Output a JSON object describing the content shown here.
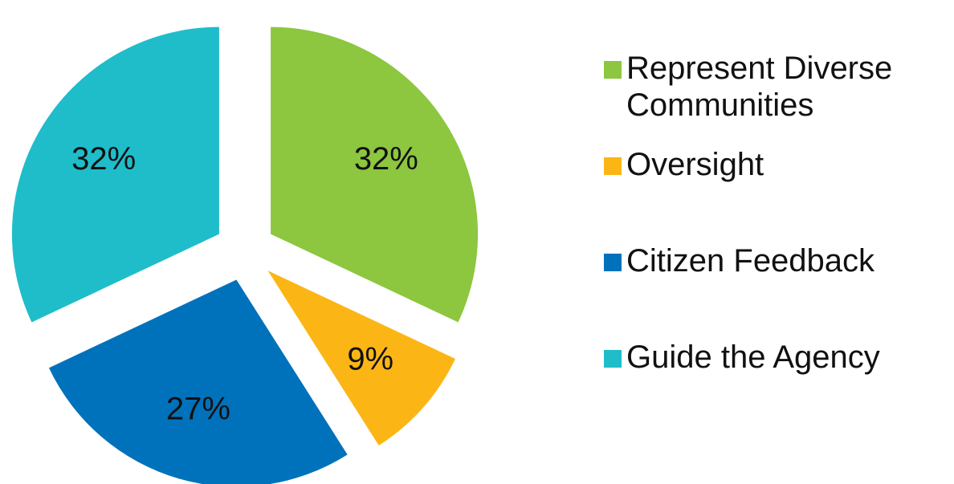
{
  "chart_data": {
    "type": "pie",
    "categories": [
      "Represent Diverse Communities",
      "Oversight",
      "Citizen Feedback",
      "Guide the Agency"
    ],
    "values": [
      32,
      9,
      27,
      32
    ],
    "value_labels": [
      "32%",
      "9%",
      "27%",
      "32%"
    ],
    "colors": [
      "#8dc63f",
      "#fbb616",
      "#0072bc",
      "#1fbdca"
    ],
    "legend": "right"
  }
}
